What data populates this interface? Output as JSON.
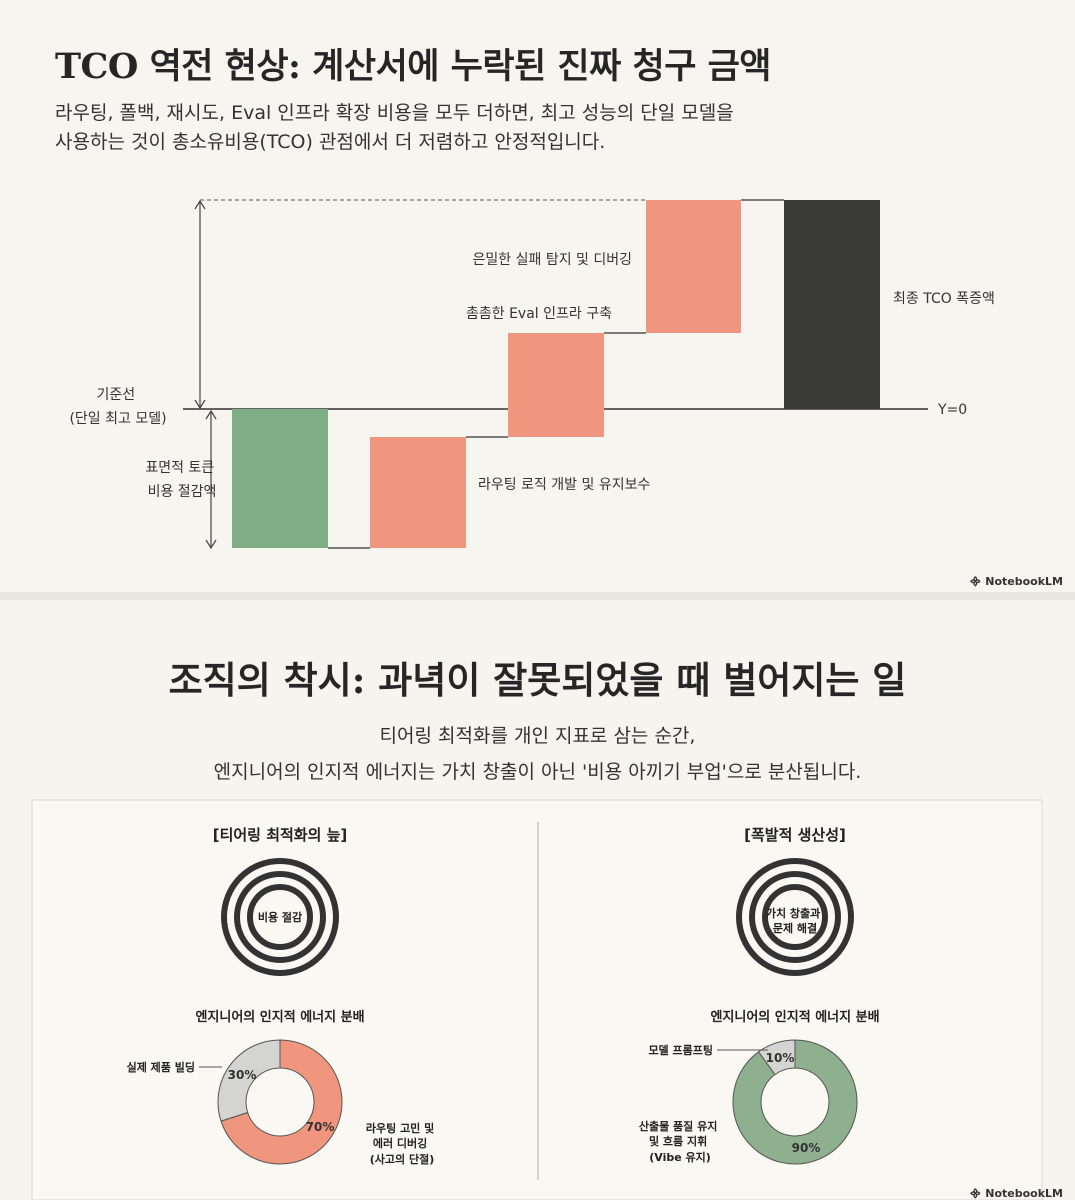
{
  "slide1": {
    "title": "TCO 역전 현상: 계산서에 누락된 진짜 청구 금액",
    "subtitle_lines": [
      "라우팅, 폴백, 재시도, Eval 인프라 확장 비용을 모두 더하면, 최고 성능의 단일 모델을",
      "사용하는 것이 총소유비용(TCO) 관점에서 더 저렴하고 안정적입니다."
    ],
    "baseline_label": [
      "기준선",
      "(단일 최고 모델)"
    ],
    "zero_label": "Y=0",
    "steps": [
      {
        "label": [
          "표면적 토큰",
          "비용 절감액"
        ],
        "color": "#7fae85"
      },
      {
        "label": [
          "라우팅 로직 개발 및 유지보수"
        ],
        "color": "#f0967e"
      },
      {
        "label": [
          "촘촘한 Eval 인프라 구축"
        ],
        "color": "#f0967e"
      },
      {
        "label": [
          "은밀한 실패 탐지 및 디버깅"
        ],
        "color": "#f0967e"
      },
      {
        "label": [
          "최종 TCO 폭증액"
        ],
        "color": "#3a3a38"
      }
    ],
    "watermark": "NotebookLM"
  },
  "slide2": {
    "title": "조직의 착시: 과녁이 잘못되었을 때 벌어지는 일",
    "subtitle_lines": [
      "티어링 최적화를 개인 지표로 삼는 순간,",
      "엔지니어의 인지적 에너지는 가치 창출이 아닌 '비용 아끼기 부업'으로 분산됩니다."
    ],
    "left": {
      "heading": "[티어링 최적화의 늪]",
      "target_label": [
        "비용 절감"
      ],
      "donut_title": "엔지니어의 인지적 에너지 분배",
      "slices": [
        {
          "value": 70,
          "pct": "70%",
          "label": [
            "라우팅 고민 및",
            "에러 디버깅",
            "(사고의 단절)"
          ],
          "color": "#f0967e"
        },
        {
          "value": 30,
          "pct": "30%",
          "label": [
            "실제 제품 빌딩"
          ],
          "color": "#d4d4d2"
        }
      ]
    },
    "right": {
      "heading": "[폭발적 생산성]",
      "target_label": [
        "가치 창출과",
        "문제 해결"
      ],
      "donut_title": "엔지니어의 인지적 에너지 분배",
      "slices": [
        {
          "value": 90,
          "pct": "90%",
          "label": [
            "산출물 품질 유지",
            "및 흐름 지휘",
            "(Vibe 유지)"
          ],
          "color": "#8fb08f"
        },
        {
          "value": 10,
          "pct": "10%",
          "label": [
            "모델 프롬프팅"
          ],
          "color": "#d4d4d2"
        }
      ]
    },
    "watermark": "NotebookLM"
  },
  "colors": {
    "ink": "#2a2a2a",
    "bg": "#f7f5ef",
    "grey_slice": "#d4d4d2"
  }
}
